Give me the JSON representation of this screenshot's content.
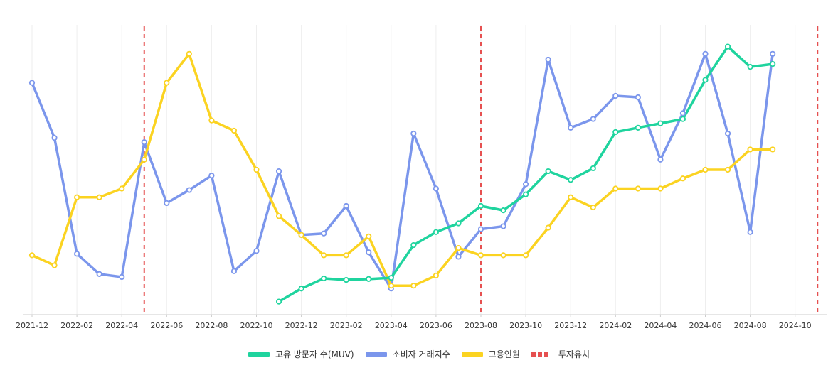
{
  "chart_data": {
    "type": "line",
    "title": "",
    "xlabel": "",
    "ylabel": "",
    "x_months": [
      "2021-12",
      "2022-01",
      "2022-02",
      "2022-03",
      "2022-04",
      "2022-05",
      "2022-06",
      "2022-07",
      "2022-08",
      "2022-09",
      "2022-10",
      "2022-11",
      "2022-12",
      "2023-01",
      "2023-02",
      "2023-03",
      "2023-04",
      "2023-05",
      "2023-06",
      "2023-07",
      "2023-08",
      "2023-09",
      "2023-10",
      "2023-11",
      "2023-12",
      "2024-01",
      "2024-02",
      "2024-03",
      "2024-04",
      "2024-05",
      "2024-06",
      "2024-07",
      "2024-08",
      "2024-09",
      "2024-10",
      "2024-11"
    ],
    "tick_labels": [
      "2021-12",
      "2022-02",
      "2022-04",
      "2022-06",
      "2022-08",
      "2022-10",
      "2022-12",
      "2023-02",
      "2023-04",
      "2023-06",
      "2023-08",
      "2023-10",
      "2023-12",
      "2024-02",
      "2024-04",
      "2024-06",
      "2024-08",
      "2024-10"
    ],
    "ylim": [
      0,
      100
    ],
    "series": [
      {
        "name": "고유 방문자 수(MUV)",
        "color": "#1fd49e",
        "values": [
          null,
          null,
          null,
          null,
          null,
          null,
          null,
          null,
          null,
          null,
          null,
          4.5,
          9,
          12.5,
          12,
          12.3,
          12.7,
          24,
          28.5,
          31.5,
          37.5,
          36,
          41.5,
          49.5,
          46.5,
          50.5,
          63,
          64.5,
          66,
          67.5,
          81,
          92.5,
          85.5,
          86.5,
          null,
          null
        ]
      },
      {
        "name": "소비자 거래지수",
        "color": "#7b96ec",
        "values": [
          80,
          61,
          21,
          14,
          13,
          59.5,
          38.5,
          43,
          48,
          15,
          22,
          49.5,
          27.5,
          28,
          37.5,
          21.5,
          9,
          62.5,
          43.5,
          20,
          29.5,
          30.5,
          45,
          88,
          64.5,
          67.5,
          75.5,
          75,
          53.5,
          69.5,
          90,
          62.5,
          28.5,
          90,
          null,
          null
        ]
      },
      {
        "name": "고용인원",
        "color": "#fbd321",
        "values": [
          20.5,
          17,
          40.5,
          40.5,
          43.5,
          53.5,
          80,
          90,
          67,
          63.5,
          50,
          34,
          27.5,
          20.5,
          20.5,
          27,
          10,
          10,
          13.5,
          23,
          20.5,
          20.5,
          20.5,
          30,
          40.5,
          37,
          43.5,
          43.5,
          43.5,
          47,
          50,
          50,
          57,
          57,
          null,
          null
        ]
      }
    ],
    "investment_events": [
      "2022-05",
      "2023-08",
      "2024-11"
    ],
    "investment_label": "투자유치",
    "investment_color": "#e65050"
  }
}
